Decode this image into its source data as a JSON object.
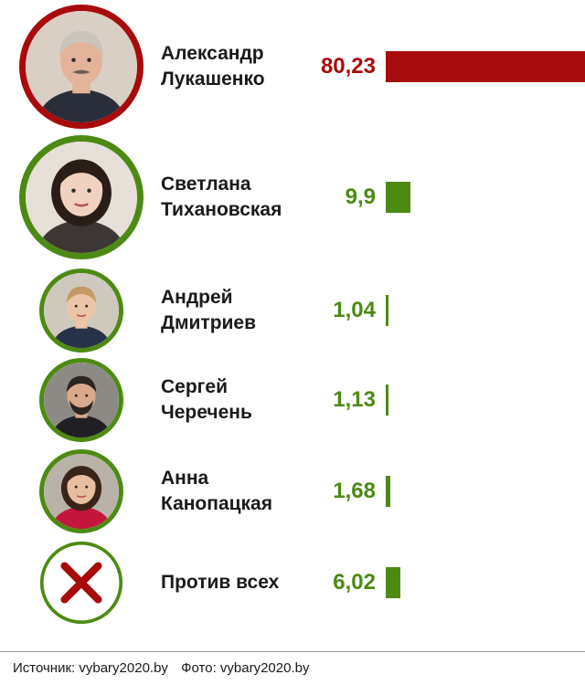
{
  "chart_data": {
    "type": "bar",
    "orientation": "horizontal",
    "categories": [
      "Александр Лукашенко",
      "Светлана Тихановская",
      "Андрей Дмитриев",
      "Сергей Черечень",
      "Анна Канопацкая",
      "Против всех"
    ],
    "name_lines": [
      [
        "Александр",
        "Лукашенко"
      ],
      [
        "Светлана",
        "Тихановская"
      ],
      [
        "Андрей",
        "Дмитриев"
      ],
      [
        "Сергей",
        "Черечень"
      ],
      [
        "Анна",
        "Канопацкая"
      ],
      [
        "Против всех"
      ]
    ],
    "values": [
      80.23,
      9.9,
      1.04,
      1.13,
      1.68,
      6.02
    ],
    "value_labels": [
      "80,23",
      "9,9",
      "1,04",
      "1,13",
      "1,68",
      "6,02"
    ],
    "bar_colors": [
      "#a70b0b",
      "#4d8a13",
      "#4d8a13",
      "#4d8a13",
      "#4d8a13",
      "#4d8a13"
    ],
    "label_colors": [
      "#a70b0b",
      "#4d8a13",
      "#4d8a13",
      "#4d8a13",
      "#4d8a13",
      "#4d8a13"
    ],
    "avatar_types": [
      "photo",
      "photo",
      "photo",
      "photo",
      "photo",
      "cross-icon"
    ],
    "legend": "none",
    "grid": false
  },
  "footer": {
    "source": "Источник: vybary2020.by",
    "photo": "Фото: vybary2020.by"
  }
}
